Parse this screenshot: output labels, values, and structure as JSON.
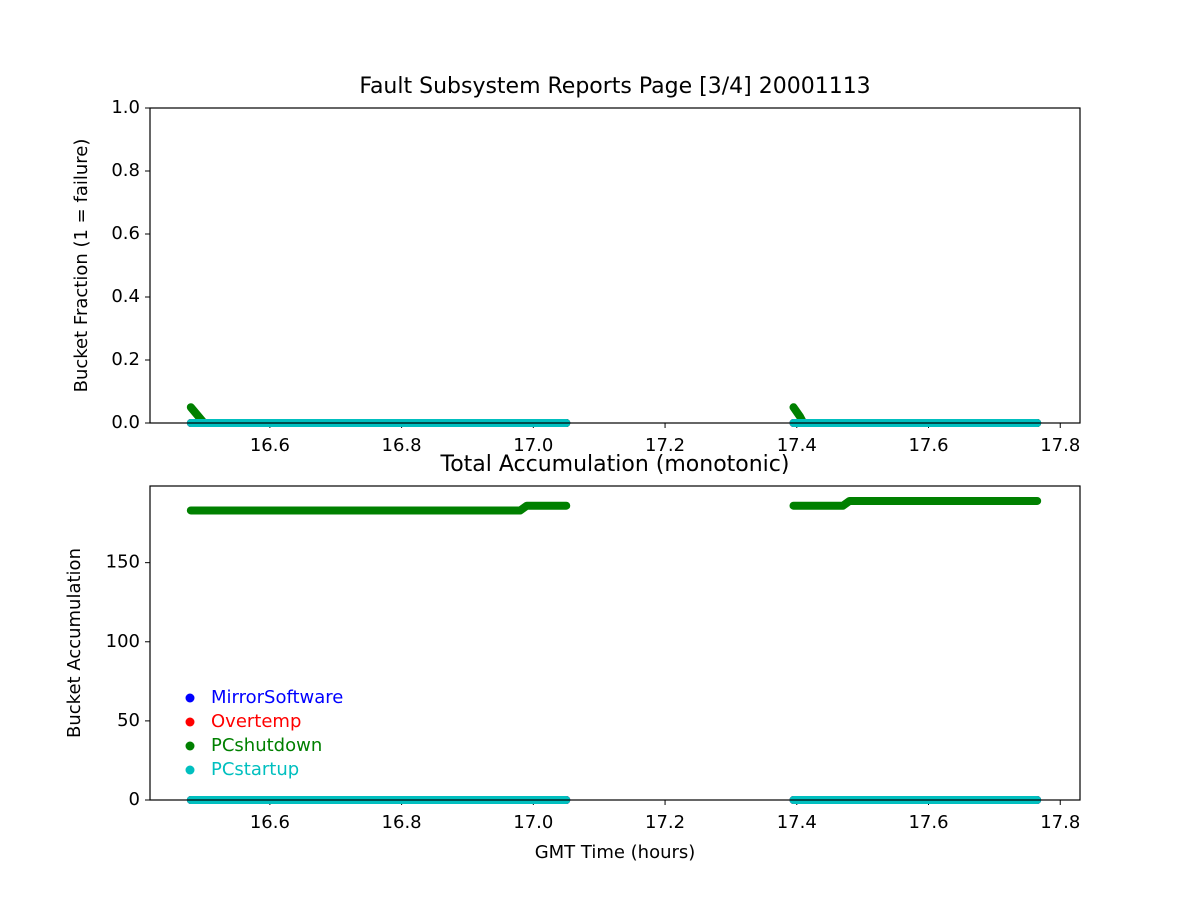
{
  "chart_data": [
    {
      "type": "line",
      "title": "Fault Subsystem Reports Page [3/4] 20001113",
      "y_label": "Bucket Fraction (1 = failure)",
      "x": [
        16.48,
        16.49,
        16.5,
        16.98,
        16.99,
        17.05,
        17.2,
        17.395,
        17.405,
        17.41,
        17.47,
        17.48,
        17.765
      ],
      "series": [
        {
          "color": "#0000ff",
          "values": [
            0,
            0,
            0,
            0,
            0,
            0,
            null,
            0,
            0,
            0,
            0,
            0,
            0
          ]
        },
        {
          "color": "#ff0000",
          "values": [
            0,
            0,
            0,
            0,
            0,
            0,
            null,
            0,
            0,
            0,
            0,
            0,
            0
          ]
        },
        {
          "color": "#008000",
          "values": [
            0.05,
            0.025,
            0,
            0,
            0,
            0,
            null,
            0.05,
            0.02,
            0,
            0,
            0,
            0
          ]
        },
        {
          "color": "#00bfbf",
          "values": [
            0,
            0,
            0,
            0,
            0,
            0,
            null,
            0,
            0,
            0,
            0,
            0,
            0
          ]
        }
      ],
      "xlim": [
        16.418,
        17.83
      ],
      "xticks": [
        16.6,
        16.8,
        {
          "value": 17,
          "label": "17.0"
        },
        17.2,
        17.4,
        17.6,
        17.8
      ],
      "ylim": [
        0,
        1
      ],
      "yticks": [
        {
          "value": 0,
          "label": "0.0"
        },
        0.2,
        0.4,
        0.6,
        0.8,
        {
          "value": 1,
          "label": "1.0"
        }
      ],
      "grid": false
    },
    {
      "type": "line",
      "title": "Total Accumulation (monotonic)",
      "x_label": "GMT Time (hours)",
      "y_label": "Bucket Accumulation",
      "x": [
        16.48,
        16.49,
        16.5,
        16.98,
        16.99,
        17.05,
        17.2,
        17.395,
        17.405,
        17.41,
        17.47,
        17.48,
        17.765
      ],
      "series": [
        {
          "name": "MirrorSoftware",
          "color": "#0000ff",
          "values": [
            0,
            0,
            0,
            0,
            0,
            0,
            null,
            0,
            0,
            0,
            0,
            0,
            0
          ]
        },
        {
          "name": "Overtemp",
          "color": "#ff0000",
          "values": [
            0,
            0,
            0,
            0,
            0,
            0,
            null,
            0,
            0,
            0,
            0,
            0,
            0
          ]
        },
        {
          "name": "PCshutdown",
          "color": "#008000",
          "values": [
            183,
            183,
            183,
            183,
            186,
            186,
            null,
            186,
            186,
            186,
            186,
            189,
            189
          ]
        },
        {
          "name": "PCstartup",
          "color": "#00bfbf",
          "values": [
            0,
            0,
            0,
            0,
            0,
            0,
            null,
            0,
            0,
            0,
            0,
            0,
            0
          ]
        }
      ],
      "xlim": [
        16.418,
        17.83
      ],
      "xticks": [
        16.6,
        16.8,
        {
          "value": 17,
          "label": "17.0"
        },
        17.2,
        17.4,
        17.6,
        17.8
      ],
      "ylim": [
        0,
        198.45
      ],
      "yticks": [
        0,
        50,
        100,
        150
      ],
      "legend": "lower left",
      "grid": false
    }
  ]
}
